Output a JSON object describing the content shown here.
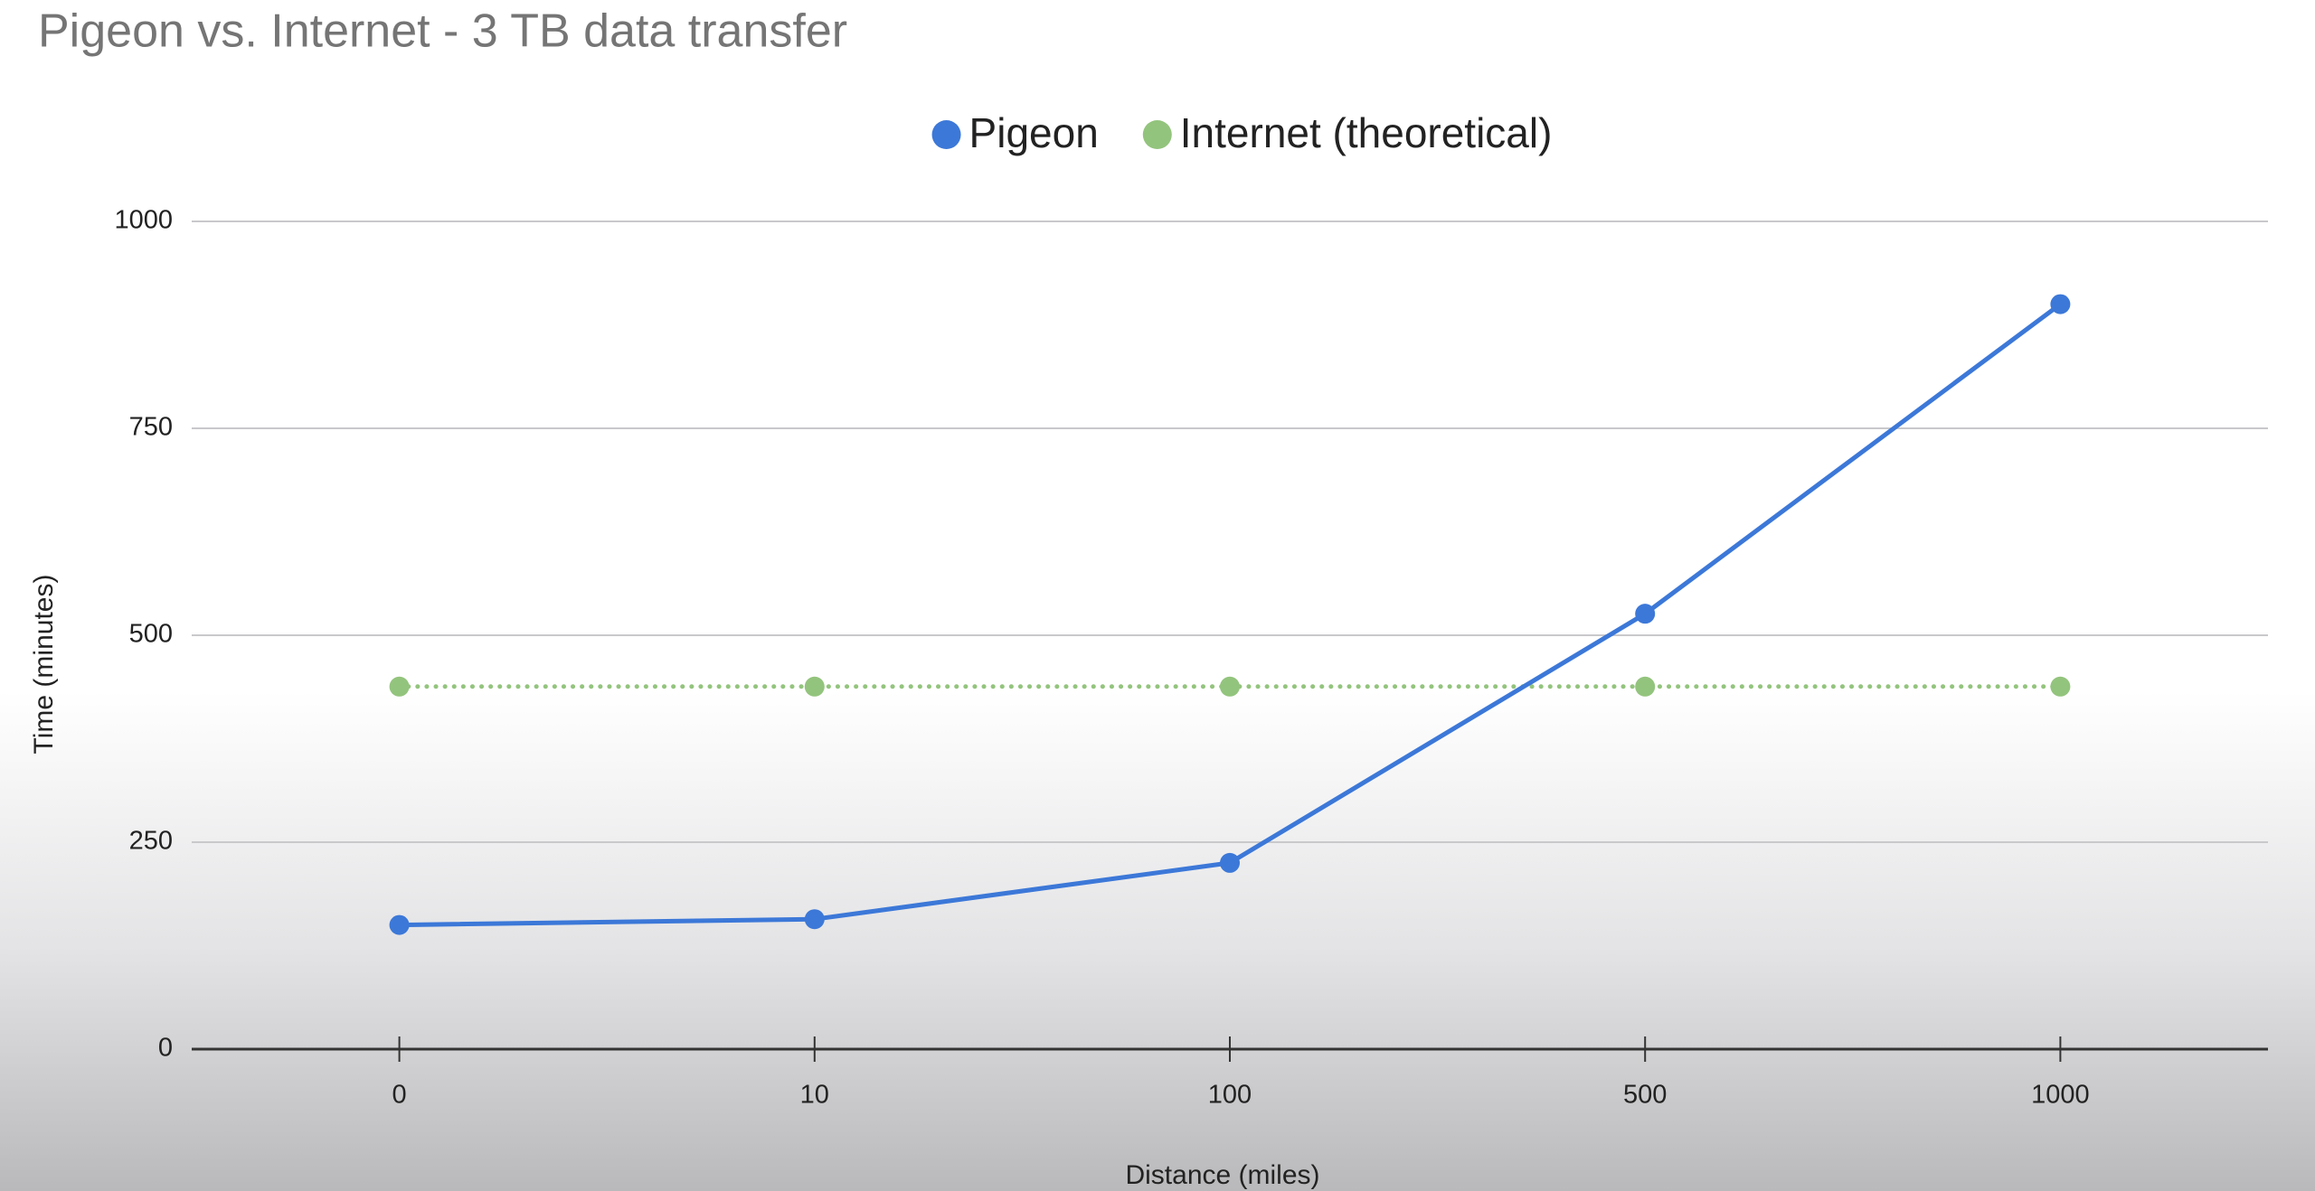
{
  "chart_data": {
    "type": "line",
    "title": "Pigeon vs. Internet - 3 TB data transfer",
    "x_label": "Distance (miles)",
    "y_label": "Time (minutes)",
    "categories": [
      "0",
      "10",
      "100",
      "500",
      "1000"
    ],
    "series": [
      {
        "name": "Pigeon",
        "color": "#3c78d8",
        "line_style": "solid",
        "values": [
          150,
          157,
          225,
          526,
          900
        ]
      },
      {
        "name": "Internet (theoretical)",
        "color": "#93c47d",
        "line_style": "dotted",
        "values": [
          438,
          438,
          438,
          438,
          438
        ]
      }
    ],
    "ylim": [
      0,
      1000
    ],
    "yticks": [
      0,
      250,
      500,
      750,
      1000
    ],
    "grid": true,
    "legend": "top"
  }
}
